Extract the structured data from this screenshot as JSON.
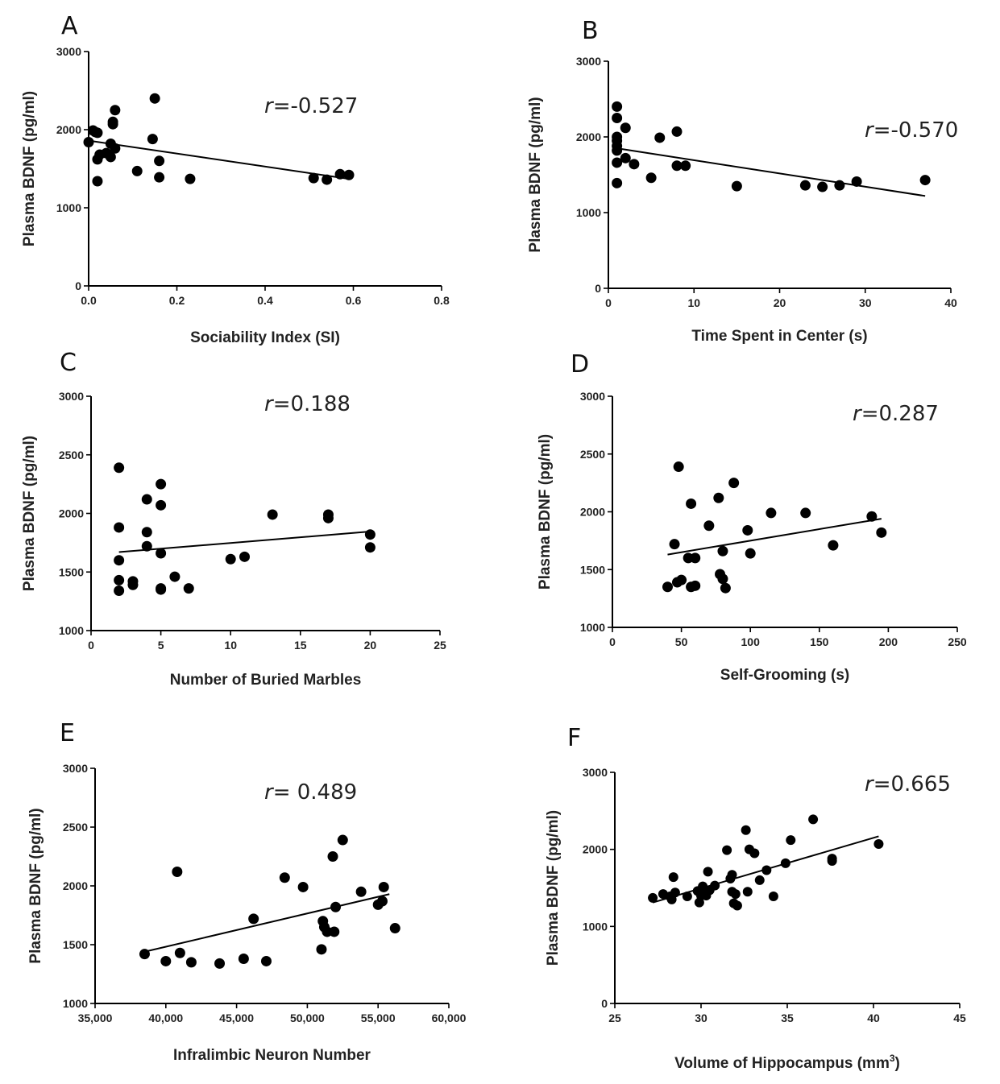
{
  "chart_data": [
    {
      "type": "scatter",
      "panel": "A",
      "xlabel": "Sociability Index (SI)",
      "ylabel": "Plasma BDNF (pg/ml)",
      "xlim": [
        0,
        0.8
      ],
      "ylim": [
        0,
        3000
      ],
      "xticks": [
        0,
        0.2,
        0.4,
        0.6,
        0.8
      ],
      "xtick_labels": [
        "0.0",
        "0.2",
        "0.4",
        "0.6",
        "0.8"
      ],
      "yticks": [
        0,
        1000,
        2000,
        3000
      ],
      "ytick_labels": [
        "0",
        "1000",
        "2000",
        "3000"
      ],
      "r_prefix": "r",
      "r_text": "=-0.527",
      "fit": [
        [
          0,
          1860
        ],
        [
          0.59,
          1370
        ]
      ],
      "points": [
        [
          0.0,
          1840
        ],
        [
          0.01,
          1990
        ],
        [
          0.015,
          1970
        ],
        [
          0.02,
          1960
        ],
        [
          0.02,
          1620
        ],
        [
          0.02,
          1340
        ],
        [
          0.025,
          1680
        ],
        [
          0.04,
          1700
        ],
        [
          0.05,
          1650
        ],
        [
          0.05,
          1820
        ],
        [
          0.055,
          2100
        ],
        [
          0.055,
          2070
        ],
        [
          0.06,
          2250
        ],
        [
          0.06,
          1760
        ],
        [
          0.11,
          1470
        ],
        [
          0.145,
          1880
        ],
        [
          0.15,
          2400
        ],
        [
          0.16,
          1600
        ],
        [
          0.16,
          1390
        ],
        [
          0.23,
          1370
        ],
        [
          0.51,
          1380
        ],
        [
          0.54,
          1360
        ],
        [
          0.57,
          1430
        ],
        [
          0.59,
          1420
        ]
      ]
    },
    {
      "type": "scatter",
      "panel": "B",
      "xlabel": "Time Spent in Center (s)",
      "ylabel": "Plasma BDNF (pg/ml)",
      "xlim": [
        0,
        40
      ],
      "ylim": [
        0,
        3000
      ],
      "xticks": [
        0,
        10,
        20,
        30,
        40
      ],
      "xtick_labels": [
        "0",
        "10",
        "20",
        "30",
        "40"
      ],
      "yticks": [
        0,
        1000,
        2000,
        3000
      ],
      "ytick_labels": [
        "0",
        "1000",
        "2000",
        "3000"
      ],
      "r_prefix": "r",
      "r_text": "=-0.570",
      "fit": [
        [
          1,
          1850
        ],
        [
          37,
          1220
        ]
      ],
      "points": [
        [
          1,
          2400
        ],
        [
          1,
          2250
        ],
        [
          1,
          2000
        ],
        [
          1,
          1950
        ],
        [
          1,
          1880
        ],
        [
          1,
          1820
        ],
        [
          1,
          1660
        ],
        [
          1,
          1390
        ],
        [
          2,
          2120
        ],
        [
          2,
          1720
        ],
        [
          3,
          1640
        ],
        [
          5,
          1460
        ],
        [
          6,
          1990
        ],
        [
          8,
          2070
        ],
        [
          8,
          1620
        ],
        [
          9,
          1620
        ],
        [
          15,
          1350
        ],
        [
          23,
          1360
        ],
        [
          25,
          1340
        ],
        [
          27,
          1360
        ],
        [
          29,
          1410
        ],
        [
          37,
          1430
        ]
      ]
    },
    {
      "type": "scatter",
      "panel": "C",
      "xlabel": "Number of Buried Marbles",
      "ylabel": "Plasma BDNF (pg/ml)",
      "xlim": [
        0,
        25
      ],
      "ylim": [
        1000,
        3000
      ],
      "xticks": [
        0,
        5,
        10,
        15,
        20,
        25
      ],
      "xtick_labels": [
        "0",
        "5",
        "10",
        "15",
        "20",
        "25"
      ],
      "yticks": [
        1000,
        1500,
        2000,
        2500,
        3000
      ],
      "ytick_labels": [
        "1000",
        "1500",
        "2000",
        "2500",
        "3000"
      ],
      "r_prefix": "r",
      "r_text": "=0.188",
      "fit": [
        [
          2,
          1670
        ],
        [
          20,
          1845
        ]
      ],
      "points": [
        [
          2,
          2390
        ],
        [
          2,
          1880
        ],
        [
          2,
          1600
        ],
        [
          2,
          1430
        ],
        [
          2,
          1340
        ],
        [
          3,
          1420
        ],
        [
          3,
          1390
        ],
        [
          4,
          2120
        ],
        [
          4,
          1840
        ],
        [
          4,
          1720
        ],
        [
          5,
          2250
        ],
        [
          5,
          2070
        ],
        [
          5,
          1660
        ],
        [
          5,
          1360
        ],
        [
          5,
          1350
        ],
        [
          6,
          1460
        ],
        [
          7,
          1360
        ],
        [
          10,
          1610
        ],
        [
          11,
          1630
        ],
        [
          13,
          1990
        ],
        [
          17,
          1990
        ],
        [
          17,
          1960
        ],
        [
          20,
          1820
        ],
        [
          20,
          1710
        ]
      ]
    },
    {
      "type": "scatter",
      "panel": "D",
      "xlabel": "Self-Grooming (s)",
      "ylabel": "Plasma BDNF (pg/ml)",
      "xlim": [
        0,
        250
      ],
      "ylim": [
        1000,
        3000
      ],
      "xticks": [
        0,
        50,
        100,
        150,
        200,
        250
      ],
      "xtick_labels": [
        "0",
        "50",
        "100",
        "150",
        "200",
        "250"
      ],
      "yticks": [
        1000,
        1500,
        2000,
        2500,
        3000
      ],
      "ytick_labels": [
        "1000",
        "1500",
        "2000",
        "2500",
        "3000"
      ],
      "r_prefix": "r",
      "r_text": "=0.287",
      "fit": [
        [
          40,
          1630
        ],
        [
          195,
          1940
        ]
      ],
      "points": [
        [
          40,
          1350
        ],
        [
          45,
          1720
        ],
        [
          47,
          1390
        ],
        [
          48,
          2390
        ],
        [
          50,
          1410
        ],
        [
          55,
          1600
        ],
        [
          57,
          1350
        ],
        [
          57,
          2070
        ],
        [
          60,
          1360
        ],
        [
          60,
          1600
        ],
        [
          70,
          1880
        ],
        [
          77,
          2120
        ],
        [
          78,
          1460
        ],
        [
          80,
          1420
        ],
        [
          80,
          1660
        ],
        [
          82,
          1340
        ],
        [
          88,
          2250
        ],
        [
          98,
          1840
        ],
        [
          100,
          1640
        ],
        [
          115,
          1990
        ],
        [
          140,
          1990
        ],
        [
          160,
          1710
        ],
        [
          188,
          1960
        ],
        [
          195,
          1820
        ]
      ]
    },
    {
      "type": "scatter",
      "panel": "E",
      "xlabel": "Infralimbic Neuron Number",
      "ylabel": "Plasma BDNF (pg/ml)",
      "xlim": [
        35000,
        60000
      ],
      "ylim": [
        1000,
        3000
      ],
      "xticks": [
        35000,
        40000,
        45000,
        50000,
        55000,
        60000
      ],
      "xtick_labels": [
        "35,000",
        "40,000",
        "45,000",
        "50,000",
        "55,000",
        "60,000"
      ],
      "yticks": [
        1000,
        1500,
        2000,
        2500,
        3000
      ],
      "ytick_labels": [
        "1000",
        "1500",
        "2000",
        "2500",
        "3000"
      ],
      "r_prefix": "r",
      "r_text": "= 0.489",
      "fit": [
        [
          38500,
          1440
        ],
        [
          55800,
          1930
        ]
      ],
      "points": [
        [
          38500,
          1420
        ],
        [
          40000,
          1360
        ],
        [
          40800,
          2120
        ],
        [
          41000,
          1430
        ],
        [
          41800,
          1350
        ],
        [
          43800,
          1340
        ],
        [
          45500,
          1380
        ],
        [
          46200,
          1720
        ],
        [
          47100,
          1360
        ],
        [
          48400,
          2070
        ],
        [
          49700,
          1990
        ],
        [
          51000,
          1460
        ],
        [
          51100,
          1700
        ],
        [
          51200,
          1650
        ],
        [
          51400,
          1610
        ],
        [
          51800,
          2250
        ],
        [
          51900,
          1610
        ],
        [
          52000,
          1820
        ],
        [
          52500,
          2390
        ],
        [
          53800,
          1950
        ],
        [
          55000,
          1840
        ],
        [
          55300,
          1870
        ],
        [
          55400,
          1990
        ],
        [
          56200,
          1640
        ]
      ]
    },
    {
      "type": "scatter",
      "panel": "F",
      "xlabel": "Volume of Hippocampus (mm",
      "xlabel_sup": "3",
      "xlabel_suffix": ")",
      "ylabel": "Plasma BDNF (pg/ml)",
      "xlim": [
        25,
        45
      ],
      "ylim": [
        0,
        3000
      ],
      "xticks": [
        25,
        30,
        35,
        40,
        45
      ],
      "xtick_labels": [
        "25",
        "30",
        "35",
        "40",
        "45"
      ],
      "yticks": [
        0,
        1000,
        2000,
        3000
      ],
      "ytick_labels": [
        "0",
        "1000",
        "2000",
        "3000"
      ],
      "r_prefix": "r",
      "r_text": "=0.665",
      "fit": [
        [
          27.2,
          1310
        ],
        [
          40.3,
          2170
        ]
      ],
      "points": [
        [
          27.2,
          1370
        ],
        [
          27.8,
          1420
        ],
        [
          28.2,
          1390
        ],
        [
          28.3,
          1350
        ],
        [
          28.4,
          1640
        ],
        [
          28.5,
          1440
        ],
        [
          29.2,
          1390
        ],
        [
          29.8,
          1460
        ],
        [
          29.9,
          1310
        ],
        [
          30.0,
          1400
        ],
        [
          30.1,
          1520
        ],
        [
          30.2,
          1460
        ],
        [
          30.3,
          1400
        ],
        [
          30.4,
          1710
        ],
        [
          30.5,
          1470
        ],
        [
          30.8,
          1530
        ],
        [
          31.5,
          1990
        ],
        [
          31.7,
          1620
        ],
        [
          31.8,
          1450
        ],
        [
          31.8,
          1670
        ],
        [
          31.9,
          1300
        ],
        [
          32.0,
          1420
        ],
        [
          32.1,
          1270
        ],
        [
          32.6,
          2250
        ],
        [
          32.7,
          1450
        ],
        [
          32.8,
          2000
        ],
        [
          33.1,
          1950
        ],
        [
          33.4,
          1600
        ],
        [
          33.8,
          1730
        ],
        [
          34.2,
          1390
        ],
        [
          34.9,
          1820
        ],
        [
          35.2,
          2120
        ],
        [
          36.5,
          2390
        ],
        [
          37.6,
          1880
        ],
        [
          37.6,
          1850
        ],
        [
          40.3,
          2070
        ]
      ]
    }
  ]
}
